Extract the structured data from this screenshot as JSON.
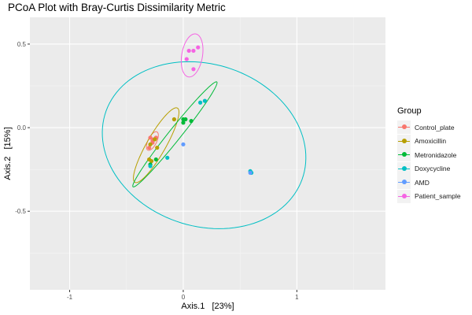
{
  "chart_data": {
    "type": "scatter",
    "title": "PCoA Plot with Bray-Curtis Dissimilarity Metric",
    "xlabel": "Axis.1   [23%]",
    "ylabel": "Axis.2   [15%]",
    "xlim": [
      -1.35,
      1.78
    ],
    "ylim": [
      -0.97,
      0.66
    ],
    "x_ticks": [
      -1,
      0,
      1
    ],
    "x_tick_labels": [
      "-1",
      "0",
      "1"
    ],
    "y_ticks": [
      -0.5,
      0.0,
      0.5
    ],
    "y_tick_labels": [
      "-0.5",
      "0.0",
      "0.5"
    ],
    "grid": true,
    "legend": {
      "title": "Group",
      "position": "right"
    },
    "ellipses": true,
    "series": [
      {
        "name": "Control_plate",
        "color": "#F8766D",
        "points": [
          [
            -0.29,
            -0.06
          ],
          [
            -0.26,
            -0.07
          ],
          [
            -0.24,
            -0.06
          ],
          [
            -0.27,
            -0.09
          ],
          [
            -0.3,
            -0.12
          ],
          [
            -0.27,
            -0.08
          ]
        ]
      },
      {
        "name": "Amoxicillin",
        "color": "#B79F00",
        "points": [
          [
            -0.3,
            -0.19
          ],
          [
            -0.28,
            -0.2
          ],
          [
            -0.23,
            -0.12
          ],
          [
            -0.29,
            -0.1
          ],
          [
            -0.25,
            -0.07
          ],
          [
            -0.08,
            0.05
          ]
        ]
      },
      {
        "name": "Metronidazole",
        "color": "#00BA38",
        "points": [
          [
            -0.24,
            -0.19
          ],
          [
            0.0,
            0.05
          ],
          [
            0.02,
            0.05
          ],
          [
            0.07,
            0.04
          ],
          [
            0.0,
            0.03
          ],
          [
            -0.29,
            -0.22
          ]
        ]
      },
      {
        "name": "Doxycycline",
        "color": "#00BFC4",
        "points": [
          [
            -0.14,
            -0.18
          ],
          [
            0.15,
            0.15
          ],
          [
            0.59,
            -0.26
          ],
          [
            0.6,
            -0.27
          ],
          [
            -0.29,
            -0.23
          ],
          [
            0.19,
            0.16
          ]
        ]
      },
      {
        "name": "AMD",
        "color": "#619CFF",
        "points": [
          [
            0.0,
            -0.1
          ],
          [
            0.59,
            -0.27
          ]
        ]
      },
      {
        "name": "Patient_sample",
        "color": "#F564E3",
        "points": [
          [
            0.05,
            0.46
          ],
          [
            0.09,
            0.46
          ],
          [
            0.13,
            0.48
          ],
          [
            0.03,
            0.41
          ],
          [
            0.09,
            0.35
          ]
        ]
      }
    ]
  }
}
